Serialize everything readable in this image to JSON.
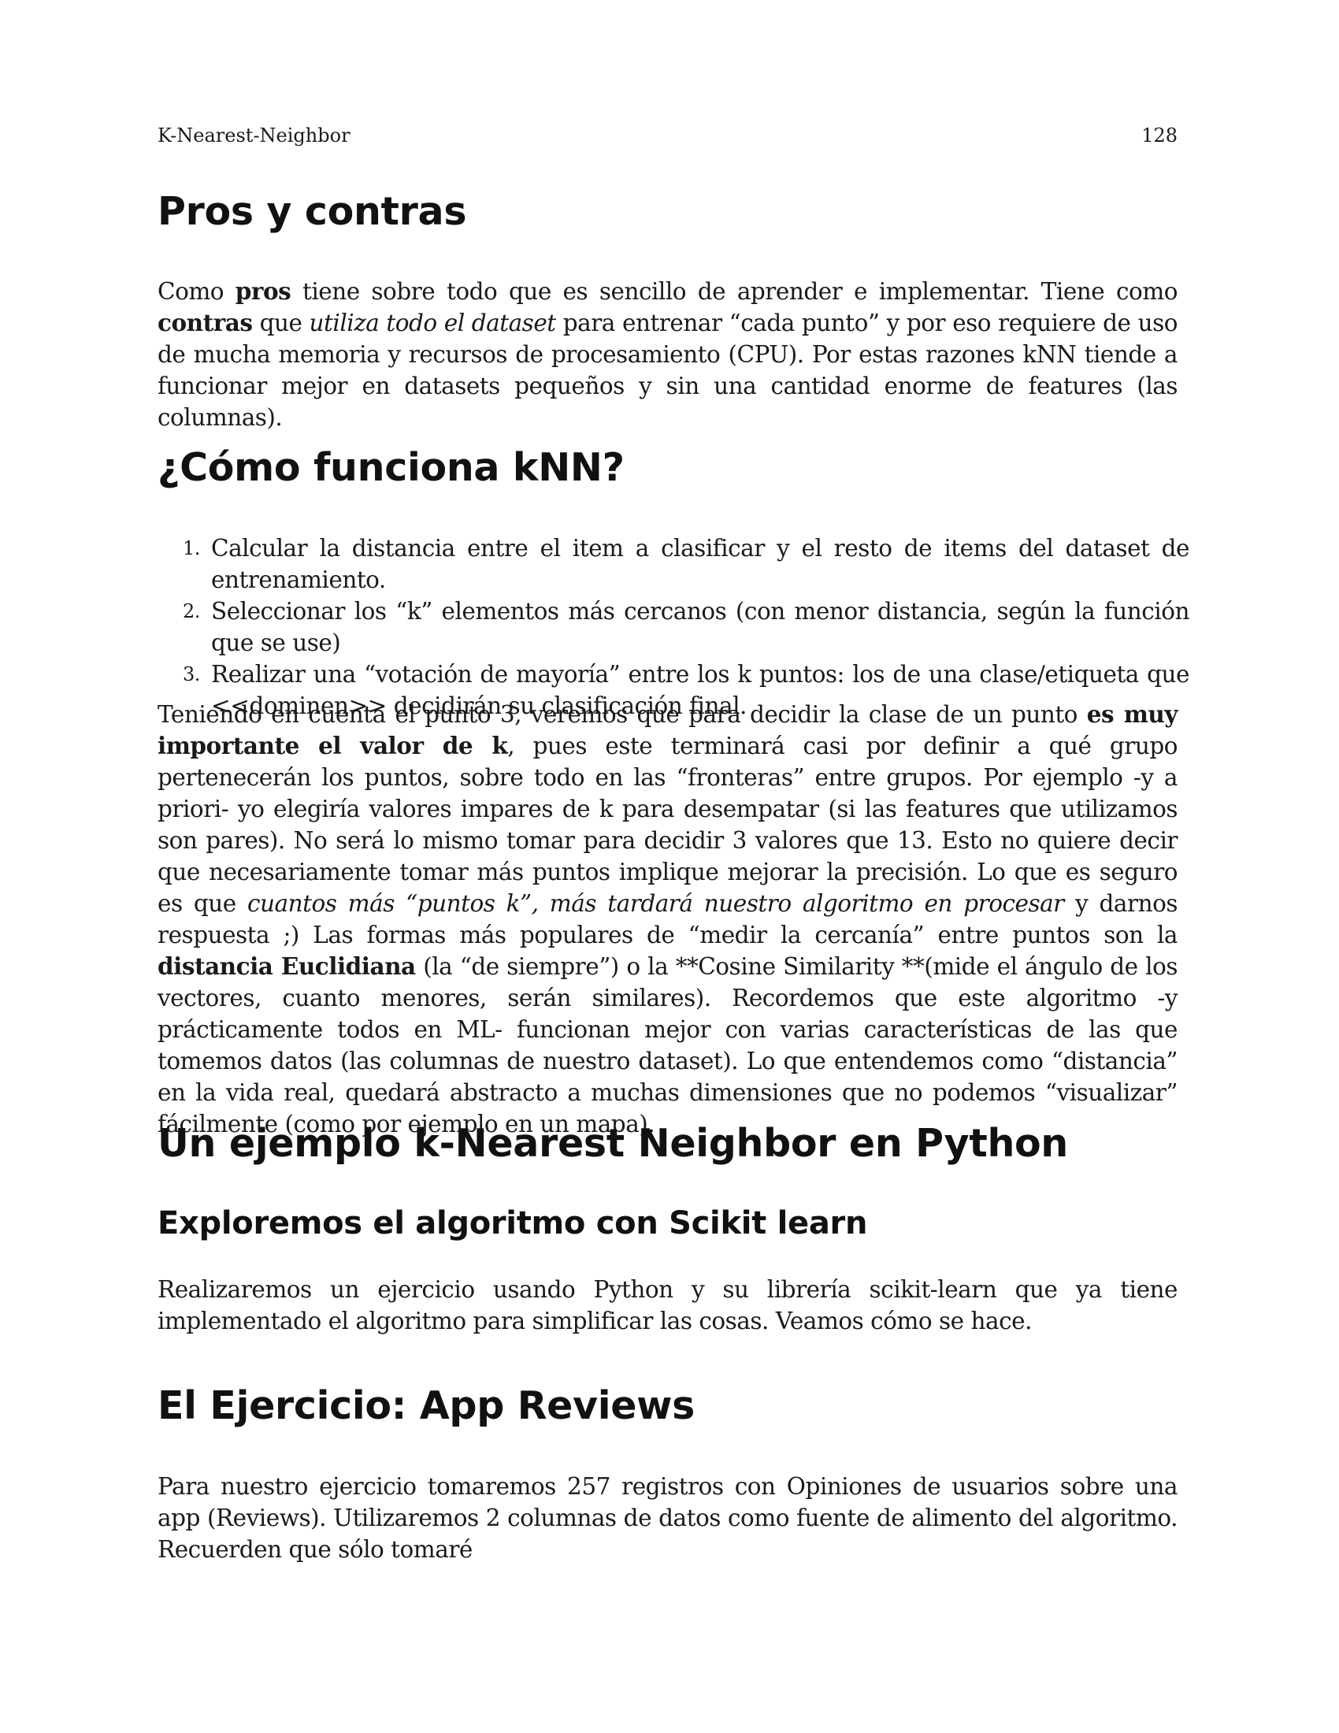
{
  "header": {
    "title": "K-Nearest-Neighbor",
    "page_number": "128"
  },
  "sections": {
    "pros_heading": "Pros y contras",
    "pros_para": {
      "t1": "Como ",
      "b1": "pros",
      "t2": " tiene sobre todo que es sencillo de aprender e implementar. Tiene como ",
      "b2": "contras",
      "t3": " que ",
      "i1": "utiliza todo el dataset",
      "t4": " para entrenar “cada punto” y por eso requiere de uso de mucha memoria y recursos de procesamiento (CPU). Por estas razones kNN tiende a funcionar mejor en datasets pequeños y sin una cantidad enorme de features (las columnas)."
    },
    "how_heading": "¿Cómo funciona kNN?",
    "steps": [
      {
        "num": "1.",
        "text": "Calcular la distancia entre el item a clasificar y el resto de items del dataset de entrenamiento."
      },
      {
        "num": "2.",
        "text": "Seleccionar los “k” elementos más cercanos (con menor distancia, según la función que se use)"
      },
      {
        "num": "3.",
        "text": "Realizar una “votación de mayoría” entre los k puntos: los de una clase/etiqueta que <<dominen>> decidirán su clasificación final."
      }
    ],
    "k_para": {
      "t1": "Teniendo en cuenta el punto 3, veremos que para decidir la clase de un punto ",
      "b1": "es muy importante el valor de k",
      "t2": ", pues este terminará casi por definir a qué grupo pertenecerán los puntos, sobre todo en las “fronteras” entre grupos. Por ejemplo -y a priori- yo elegiría valores impares de k para desempatar (si las features que utilizamos son pares). No será lo mismo tomar para decidir 3 valores que 13. Esto no quiere decir que necesariamente tomar más puntos implique mejorar la precisión. Lo que es seguro es que ",
      "i1": "cuantos más “puntos k”, más tardará nuestro algoritmo en procesar",
      "t3": " y darnos respuesta ;) Las formas más populares de “medir la cercanía” entre puntos son la ",
      "b2": "distancia Euclidiana",
      "t4": " (la “de siempre”) o la **Cosine Similarity **(mide el ángulo de los vectores, cuanto menores, serán similares). Recordemos que este algoritmo -y prácticamente todos en ML- funcionan mejor con varias características de las que tomemos datos (las columnas de nuestro dataset). Lo que entendemos como “distancia” en la vida real, quedará abstracto a muchas dimensiones que no podemos “visualizar” fácilmente (como por ejemplo en un mapa)."
    },
    "example_heading": "Un ejemplo k-Nearest Neighbor en Python",
    "explore_heading": "Exploremos el algoritmo con Scikit learn",
    "explore_para": "Realizaremos un ejercicio usando Python y su librería scikit-learn que ya tiene implementado el algoritmo para simplificar las cosas. Veamos cómo se hace.",
    "exercise_heading": "El Ejercicio: App Reviews",
    "exercise_para": "Para nuestro ejercicio tomaremos 257 registros con Opiniones de usuarios sobre una app (Reviews). Utilizaremos 2 columnas de datos como fuente de alimento del algoritmo. Recuerden que sólo tomaré"
  }
}
